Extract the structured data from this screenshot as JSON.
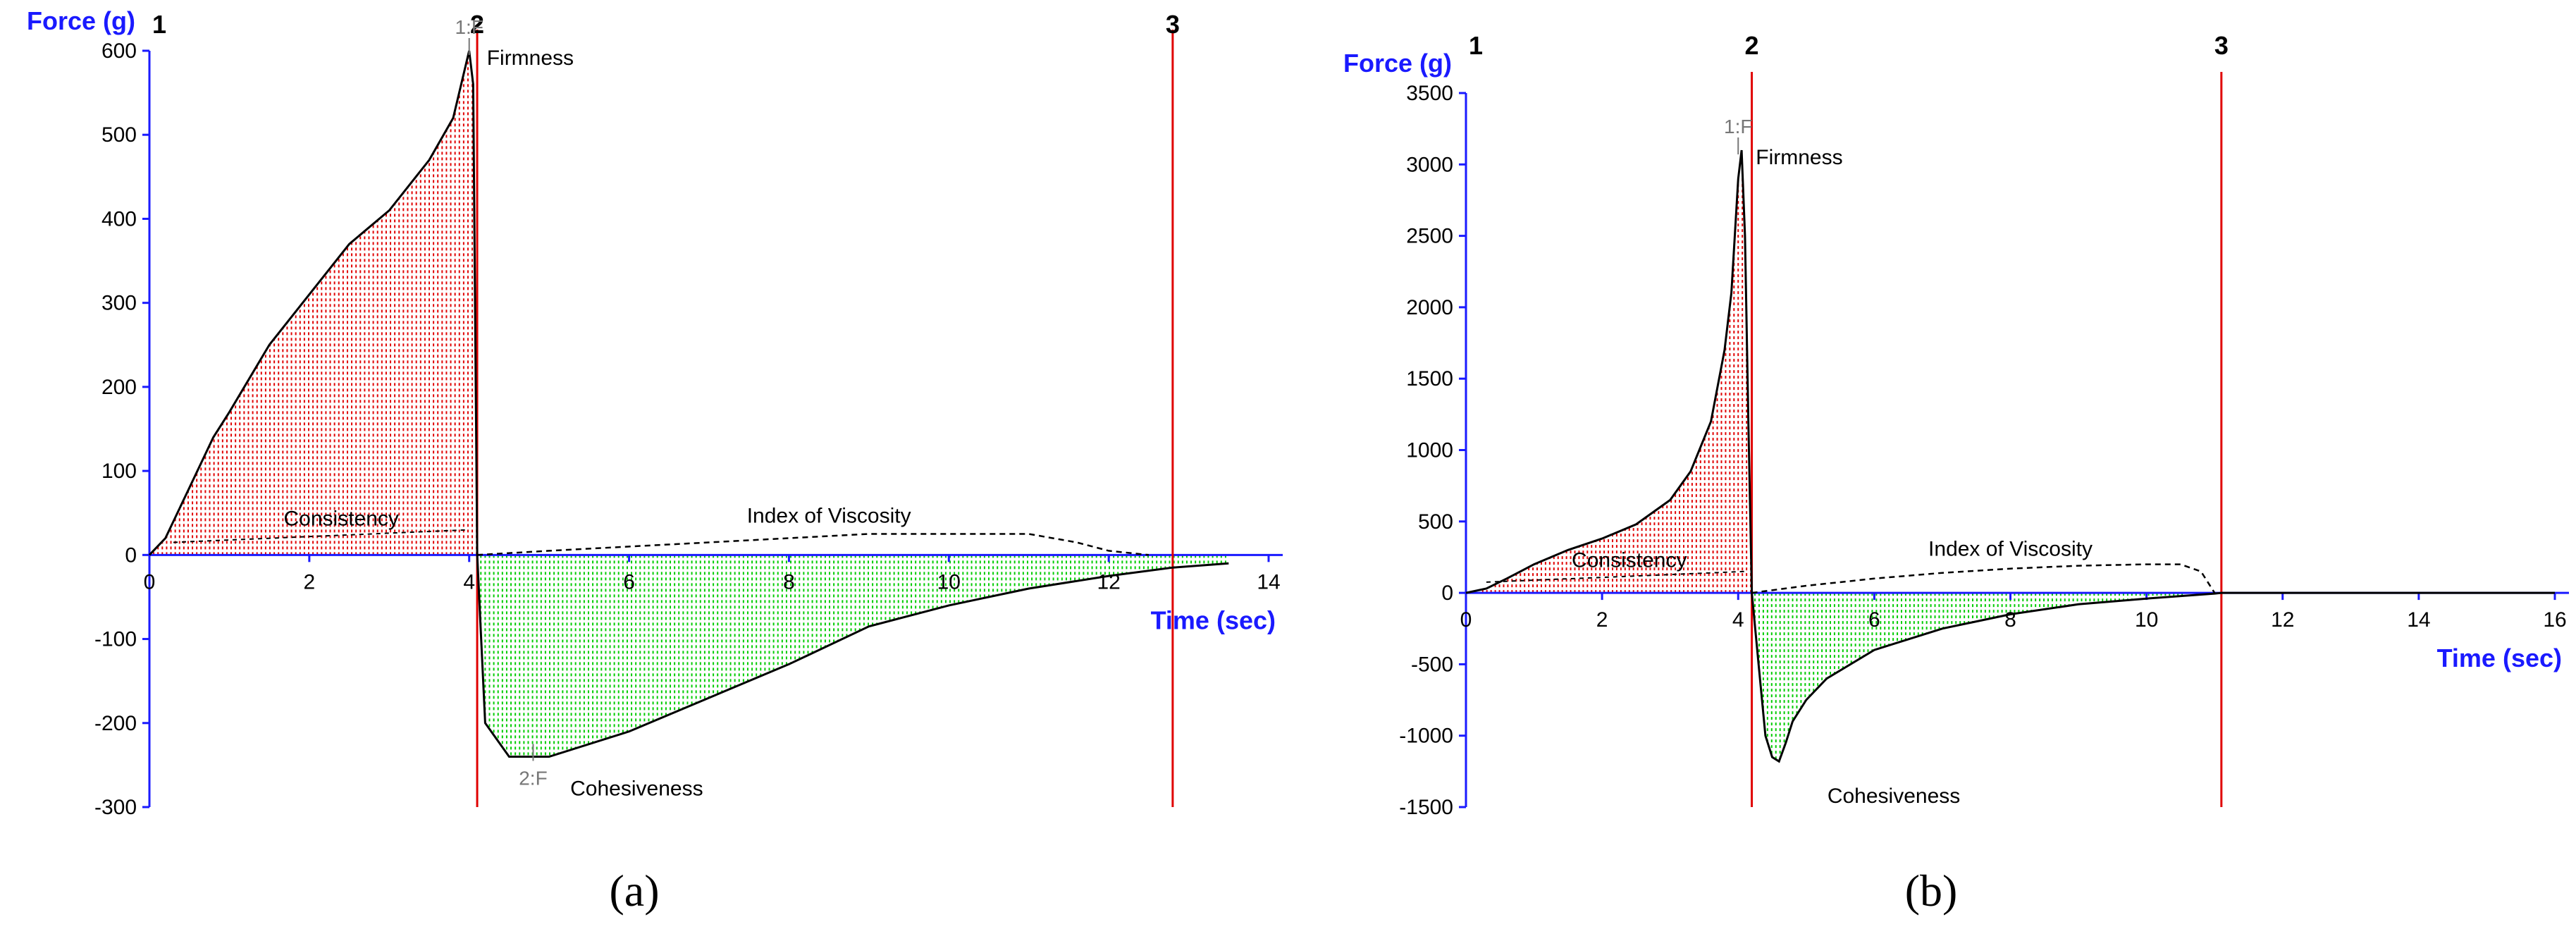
{
  "colors": {
    "axis": "#1a1aff",
    "marker_line": "#e00000",
    "positive_fill": "#e00000",
    "negative_fill": "#00cc00",
    "curve": "#000000"
  },
  "chart_data": [
    {
      "type": "area",
      "panel_label": "(a)",
      "xlabel": "Time (sec)",
      "ylabel": "Force (g)",
      "xlim": [
        0,
        14
      ],
      "ylim": [
        -300,
        600
      ],
      "xticks": [
        0,
        2,
        4,
        6,
        8,
        10,
        12,
        14
      ],
      "yticks": [
        -300,
        -200,
        -100,
        0,
        100,
        200,
        300,
        400,
        500,
        600
      ],
      "markers": [
        {
          "label": "1",
          "x": 0
        },
        {
          "label": "2",
          "x": 4.1
        },
        {
          "label": "3",
          "x": 12.8
        }
      ],
      "peak_labels": [
        {
          "label": "1:F",
          "x": 4.0,
          "y": 600
        },
        {
          "label": "2:F",
          "x": 4.8,
          "y": -240
        }
      ],
      "annotations": [
        {
          "text": "Firmness",
          "x": 4.0,
          "y": 600
        },
        {
          "text": "Consistency",
          "x": 2.4,
          "y": 30
        },
        {
          "text": "Index of Viscosity",
          "x": 8.5,
          "y": 20
        },
        {
          "text": "Cohesiveness",
          "x": 5.0,
          "y": -240
        }
      ],
      "series": [
        {
          "x": [
            0,
            0.2,
            0.5,
            0.8,
            1.0,
            1.5,
            2.0,
            2.5,
            3.0,
            3.5,
            3.8,
            4.0,
            4.05,
            4.1,
            4.15,
            4.2,
            4.5,
            5.0,
            6.0,
            7.0,
            8.0,
            9.0,
            10.0,
            11.0,
            12.0,
            12.8,
            13.5
          ],
          "y": [
            0,
            20,
            80,
            140,
            170,
            250,
            310,
            370,
            410,
            470,
            520,
            600,
            560,
            0,
            -100,
            -200,
            -240,
            -240,
            -210,
            -170,
            -130,
            -85,
            -60,
            -40,
            -25,
            -15,
            -10
          ]
        },
        {
          "name": "Index of Viscosity",
          "x": [
            4.1,
            5.0,
            6.0,
            7.0,
            8.0,
            9.0,
            10.0,
            11.0,
            11.6,
            12.0,
            12.5
          ],
          "y": [
            0,
            5,
            10,
            15,
            20,
            25,
            25,
            25,
            15,
            5,
            0
          ]
        }
      ]
    },
    {
      "type": "area",
      "panel_label": "(b)",
      "xlabel": "Time (sec)",
      "ylabel": "Force (g)",
      "xlim": [
        0,
        16
      ],
      "ylim": [
        -1500,
        3500
      ],
      "xticks": [
        0,
        2,
        4,
        6,
        8,
        10,
        12,
        14,
        16
      ],
      "yticks": [
        -1500,
        -1000,
        -500,
        0,
        500,
        1000,
        1500,
        2000,
        2500,
        3000,
        3500
      ],
      "markers": [
        {
          "label": "1",
          "x": 0
        },
        {
          "label": "2",
          "x": 4.2
        },
        {
          "label": "3",
          "x": 11.1
        }
      ],
      "peak_labels": [
        {
          "label": "1:F",
          "x": 4.0,
          "y": 3100
        }
      ],
      "annotations": [
        {
          "text": "Firmness",
          "x": 4.0,
          "y": 3100
        },
        {
          "text": "Consistency",
          "x": 2.4,
          "y": 150
        },
        {
          "text": "Index of Viscosity",
          "x": 8.0,
          "y": 150
        },
        {
          "text": "Cohesiveness",
          "x": 5.0,
          "y": -1200
        }
      ],
      "series": [
        {
          "x": [
            0,
            0.3,
            0.6,
            1.0,
            1.5,
            2.0,
            2.5,
            3.0,
            3.3,
            3.6,
            3.8,
            3.9,
            4.0,
            4.05,
            4.1,
            4.15,
            4.2,
            4.3,
            4.4,
            4.5,
            4.6,
            4.7,
            4.8,
            5.0,
            5.3,
            6.0,
            7.0,
            8.0,
            9.0,
            10.0,
            11.0,
            11.1,
            16.0
          ],
          "y": [
            0,
            30,
            100,
            200,
            300,
            380,
            480,
            650,
            850,
            1200,
            1700,
            2100,
            2900,
            3100,
            2500,
            1200,
            0,
            -500,
            -1000,
            -1150,
            -1180,
            -1050,
            -900,
            -750,
            -600,
            -400,
            -250,
            -150,
            -80,
            -40,
            -5,
            0,
            0
          ]
        },
        {
          "name": "Index of Viscosity",
          "x": [
            4.2,
            5.0,
            6.0,
            7.0,
            8.0,
            9.0,
            10.0,
            10.5,
            10.8,
            11.0
          ],
          "y": [
            0,
            50,
            100,
            140,
            170,
            190,
            200,
            200,
            150,
            0
          ]
        }
      ]
    }
  ]
}
